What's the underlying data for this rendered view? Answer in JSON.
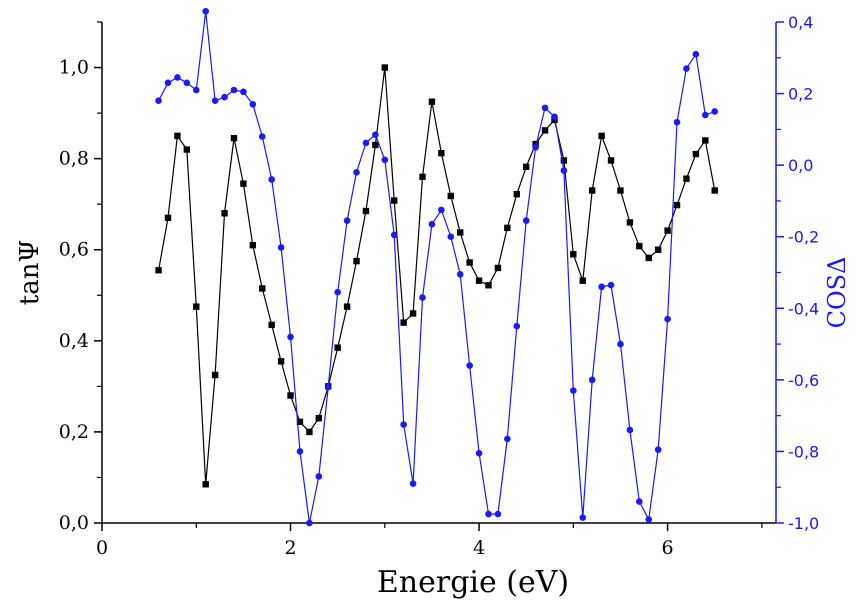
{
  "chart_data": {
    "type": "line",
    "xlabel": "Energie (eV)",
    "ylabel_left": "tanΨ",
    "ylabel_right": "COSΔ",
    "xlim": [
      0,
      7.15
    ],
    "ylim_left": [
      0,
      1.1
    ],
    "ylim_right": [
      -1.0,
      0.4
    ],
    "x_ticks": [
      0,
      2,
      4,
      6
    ],
    "x_tick_labels": [
      "0",
      "2",
      "4",
      "6"
    ],
    "left_ticks": [
      0,
      0.2,
      0.4,
      0.6,
      0.8,
      1.0
    ],
    "left_tick_labels": [
      "0,0",
      "0,2",
      "0,4",
      "0,6",
      "0,8",
      "1,0"
    ],
    "right_ticks": [
      -1.0,
      -0.8,
      -0.6,
      -0.4,
      -0.2,
      0.0,
      0.2,
      0.4
    ],
    "right_tick_labels": [
      "-1,0",
      "-0,8",
      "-0,6",
      "-0,4",
      "-0,2",
      "0,0",
      "0,2",
      "0,4"
    ],
    "grid": false,
    "colors": {
      "tan_series": "#000000",
      "cos_series": "#1a1aff",
      "right_axis": "#1a1aff"
    },
    "series": [
      {
        "axis": "left",
        "marker": "square",
        "x": [
          0.6,
          0.7,
          0.8,
          0.9,
          1.0,
          1.1,
          1.2,
          1.3,
          1.4,
          1.5,
          1.6,
          1.7,
          1.8,
          1.9,
          2.0,
          2.1,
          2.2,
          2.3,
          2.4,
          2.5,
          2.6,
          2.7,
          2.8,
          2.9,
          3.0,
          3.1,
          3.2,
          3.3,
          3.4,
          3.5,
          3.6,
          3.7,
          3.8,
          3.9,
          4.0,
          4.1,
          4.2,
          4.3,
          4.4,
          4.5,
          4.6,
          4.7,
          4.8,
          4.9,
          5.0,
          5.1,
          5.2,
          5.3,
          5.4,
          5.5,
          5.6,
          5.7,
          5.8,
          5.9,
          6.0,
          6.1,
          6.2,
          6.3,
          6.4,
          6.5
        ],
        "y": [
          0.555,
          0.67,
          0.85,
          0.82,
          0.475,
          0.085,
          0.325,
          0.68,
          0.845,
          0.745,
          0.61,
          0.515,
          0.435,
          0.355,
          0.28,
          0.222,
          0.2,
          0.23,
          0.3,
          0.385,
          0.475,
          0.575,
          0.685,
          0.83,
          1.0,
          0.708,
          0.44,
          0.46,
          0.76,
          0.925,
          0.812,
          0.718,
          0.638,
          0.572,
          0.532,
          0.522,
          0.56,
          0.648,
          0.722,
          0.782,
          0.832,
          0.862,
          0.885,
          0.796,
          0.59,
          0.532,
          0.73,
          0.85,
          0.796,
          0.73,
          0.66,
          0.608,
          0.582,
          0.6,
          0.642,
          0.698,
          0.756,
          0.81,
          0.84,
          0.73
        ]
      },
      {
        "axis": "right",
        "marker": "circle",
        "x": [
          0.6,
          0.7,
          0.8,
          0.9,
          1.0,
          1.1,
          1.2,
          1.3,
          1.4,
          1.5,
          1.6,
          1.7,
          1.8,
          1.9,
          2.0,
          2.1,
          2.2,
          2.3,
          2.4,
          2.5,
          2.6,
          2.7,
          2.8,
          2.9,
          3.0,
          3.1,
          3.2,
          3.3,
          3.4,
          3.5,
          3.6,
          3.7,
          3.8,
          3.9,
          4.0,
          4.1,
          4.2,
          4.3,
          4.4,
          4.5,
          4.6,
          4.7,
          4.8,
          4.9,
          5.0,
          5.1,
          5.2,
          5.3,
          5.4,
          5.5,
          5.6,
          5.7,
          5.8,
          5.9,
          6.0,
          6.1,
          6.2,
          6.3,
          6.4,
          6.5
        ],
        "y": [
          0.18,
          0.23,
          0.245,
          0.23,
          0.21,
          0.43,
          0.18,
          0.19,
          0.21,
          0.205,
          0.17,
          0.08,
          -0.04,
          -0.23,
          -0.48,
          -0.8,
          -1.0,
          -0.87,
          -0.62,
          -0.355,
          -0.155,
          -0.02,
          0.062,
          0.085,
          0.015,
          -0.195,
          -0.725,
          -0.89,
          -0.37,
          -0.165,
          -0.125,
          -0.2,
          -0.305,
          -0.56,
          -0.805,
          -0.975,
          -0.975,
          -0.765,
          -0.45,
          -0.155,
          0.05,
          0.16,
          0.135,
          -0.015,
          -0.63,
          -0.985,
          -0.6,
          -0.34,
          -0.335,
          -0.5,
          -0.74,
          -0.94,
          -0.99,
          -0.795,
          -0.43,
          0.12,
          0.27,
          0.31,
          0.14,
          0.15
        ]
      }
    ]
  }
}
